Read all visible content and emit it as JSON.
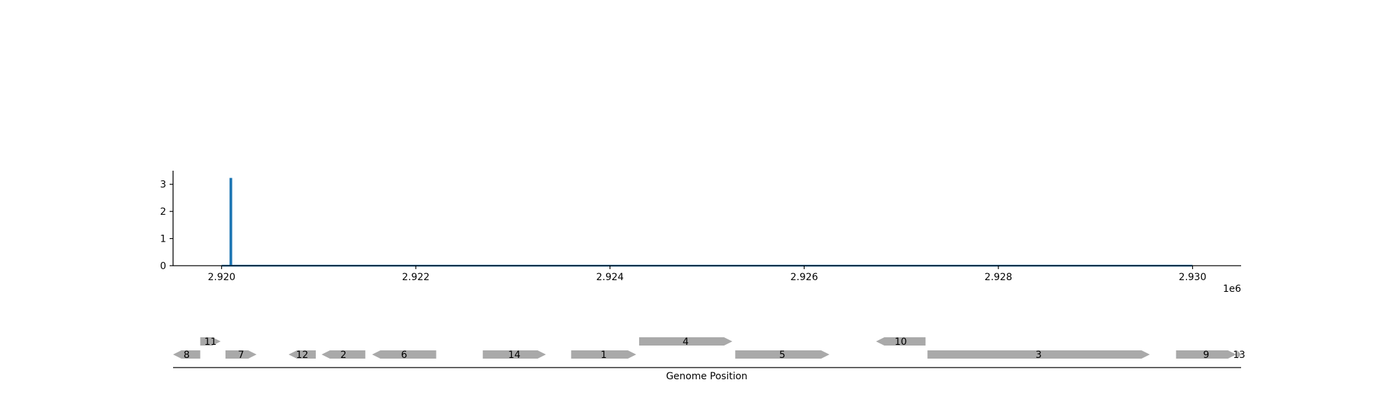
{
  "chart_data": [
    {
      "type": "line",
      "title": "",
      "xlabel": "",
      "ylabel": "",
      "x_offset_label": "1e6",
      "xlim": [
        2919500,
        2930500
      ],
      "ylim": [
        0,
        3.5
      ],
      "x_ticks": [
        2920000,
        2922000,
        2924000,
        2926000,
        2928000,
        2930000
      ],
      "x_tick_labels": [
        "2.920",
        "2.922",
        "2.924",
        "2.926",
        "2.928",
        "2.930"
      ],
      "y_ticks": [
        0,
        1,
        2,
        3
      ],
      "y_tick_labels": [
        "0",
        "1",
        "2",
        "3"
      ],
      "grid": false,
      "series": [
        {
          "color": "#1f77b4",
          "points": [
            [
              2920000,
              0
            ],
            [
              2920090,
              0
            ],
            [
              2920090,
              3.2
            ],
            [
              2920100,
              3.2
            ],
            [
              2920100,
              0
            ],
            [
              2930000,
              0
            ]
          ]
        }
      ]
    },
    {
      "type": "gene-map",
      "xlabel": "Genome Position",
      "xlim": [
        2919500,
        2930500
      ],
      "genes": [
        {
          "label": "8",
          "start": 2919500,
          "end": 2919780,
          "strand": "-",
          "row": 0
        },
        {
          "label": "11",
          "start": 2919780,
          "end": 2919990,
          "strand": "+",
          "row": 1
        },
        {
          "label": "7",
          "start": 2920040,
          "end": 2920360,
          "strand": "+",
          "row": 0
        },
        {
          "label": "12",
          "start": 2920690,
          "end": 2920970,
          "strand": "-",
          "row": 0
        },
        {
          "label": "2",
          "start": 2921030,
          "end": 2921480,
          "strand": "-",
          "row": 0
        },
        {
          "label": "6",
          "start": 2921550,
          "end": 2922210,
          "strand": "-",
          "row": 0
        },
        {
          "label": "14",
          "start": 2922690,
          "end": 2923340,
          "strand": "+",
          "row": 0
        },
        {
          "label": "1",
          "start": 2923600,
          "end": 2924270,
          "strand": "+",
          "row": 0
        },
        {
          "label": "4",
          "start": 2924300,
          "end": 2925260,
          "strand": "+",
          "row": 1
        },
        {
          "label": "5",
          "start": 2925290,
          "end": 2926260,
          "strand": "+",
          "row": 0
        },
        {
          "label": "10",
          "start": 2926740,
          "end": 2927250,
          "strand": "-",
          "row": 1
        },
        {
          "label": "3",
          "start": 2927270,
          "end": 2929560,
          "strand": "+",
          "row": 0
        },
        {
          "label": "9",
          "start": 2929830,
          "end": 2930450,
          "strand": "+",
          "row": 0
        },
        {
          "label": "13",
          "start": 2930460,
          "end": 2930500,
          "strand": "+",
          "row": 0
        }
      ],
      "gene_color": "#a9a9a9"
    }
  ]
}
